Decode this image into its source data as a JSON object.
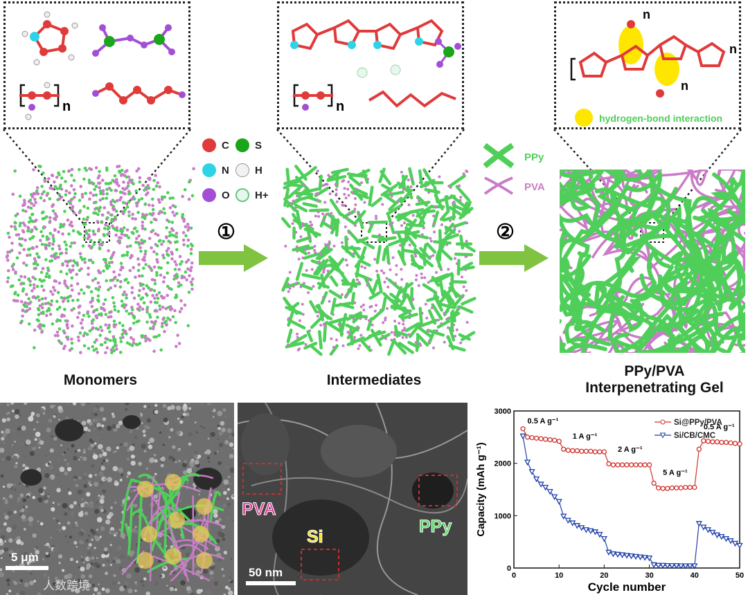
{
  "stages": {
    "monomers": "Monomers",
    "intermediates": "Intermediates",
    "gel_line1": "PPy/PVA",
    "gel_line2": "Interpenetrating Gel"
  },
  "steps": {
    "step1": "①",
    "step2": "②"
  },
  "atom_legend": [
    {
      "symbol": "C",
      "color": "#e03a3a"
    },
    {
      "symbol": "S",
      "color": "#1aa51a"
    },
    {
      "symbol": "N",
      "color": "#2fd3e6"
    },
    {
      "symbol": "H",
      "color": "#f2f2f2"
    },
    {
      "symbol": "O",
      "color": "#a24fd6"
    },
    {
      "symbol": "H+",
      "color": "#e8f7ee"
    }
  ],
  "polymer_legend": {
    "ppy": "PPy",
    "pva": "PVA",
    "ppy_color": "#4fcf5a",
    "pva_color": "#c97cc7"
  },
  "molecule_labels": {
    "subscript_n": "n",
    "hbond": "hydrogen-bond interaction"
  },
  "sem": {
    "scale": "5 μm",
    "watermark": "人数跨境"
  },
  "tem": {
    "scale": "50 nm",
    "pva": "PVA",
    "si": "Si",
    "ppy": "PPy"
  },
  "chart_data": {
    "type": "scatter",
    "xlabel": "Cycle number",
    "ylabel": "Capacity (mAh g⁻¹)",
    "xlim": [
      0,
      50
    ],
    "ylim": [
      0,
      3000
    ],
    "xticks": [
      "0",
      "10",
      "20",
      "30",
      "40",
      "50"
    ],
    "yticks": [
      "0",
      "1000",
      "2000",
      "3000"
    ],
    "series": [
      {
        "name": "Si@PPy/PVA",
        "color": "#d0302a",
        "marker": "circle",
        "x": [
          2,
          3,
          4,
          5,
          6,
          7,
          8,
          9,
          10,
          11,
          12,
          13,
          14,
          15,
          16,
          17,
          18,
          19,
          20,
          21,
          22,
          23,
          24,
          25,
          26,
          27,
          28,
          29,
          30,
          31,
          32,
          33,
          34,
          35,
          36,
          37,
          38,
          39,
          40,
          41,
          42,
          43,
          44,
          45,
          46,
          47,
          48,
          49,
          50
        ],
        "y": [
          2660,
          2500,
          2490,
          2480,
          2470,
          2460,
          2450,
          2440,
          2420,
          2270,
          2250,
          2240,
          2240,
          2230,
          2230,
          2230,
          2220,
          2220,
          2220,
          1990,
          1970,
          1970,
          1970,
          1970,
          1970,
          1970,
          1970,
          1970,
          1970,
          1620,
          1530,
          1520,
          1520,
          1530,
          1530,
          1530,
          1540,
          1540,
          1540,
          2270,
          2430,
          2420,
          2410,
          2410,
          2400,
          2400,
          2390,
          2380,
          2370
        ]
      },
      {
        "name": "Si/CB/CMC",
        "color": "#1f3fa8",
        "marker": "triangle-down",
        "x": [
          2,
          3,
          4,
          5,
          6,
          7,
          8,
          9,
          10,
          11,
          12,
          13,
          14,
          15,
          16,
          17,
          18,
          19,
          20,
          21,
          22,
          23,
          24,
          25,
          26,
          27,
          28,
          29,
          30,
          31,
          32,
          33,
          34,
          35,
          36,
          37,
          38,
          39,
          40,
          41,
          42,
          43,
          44,
          45,
          46,
          47,
          48,
          49,
          50
        ],
        "y": [
          2520,
          2020,
          1840,
          1700,
          1600,
          1540,
          1460,
          1360,
          1270,
          990,
          910,
          860,
          810,
          770,
          730,
          710,
          690,
          640,
          560,
          300,
          270,
          260,
          250,
          240,
          230,
          220,
          210,
          200,
          190,
          60,
          50,
          50,
          45,
          45,
          45,
          40,
          40,
          40,
          40,
          850,
          780,
          730,
          680,
          630,
          600,
          560,
          520,
          470,
          430
        ]
      }
    ],
    "annotations": [
      "0.5 A g⁻¹",
      "1 A g⁻¹",
      "2 A g⁻¹",
      "5 A g⁻¹",
      "0.5 A g⁻¹"
    ],
    "legend_position": "top-right"
  }
}
